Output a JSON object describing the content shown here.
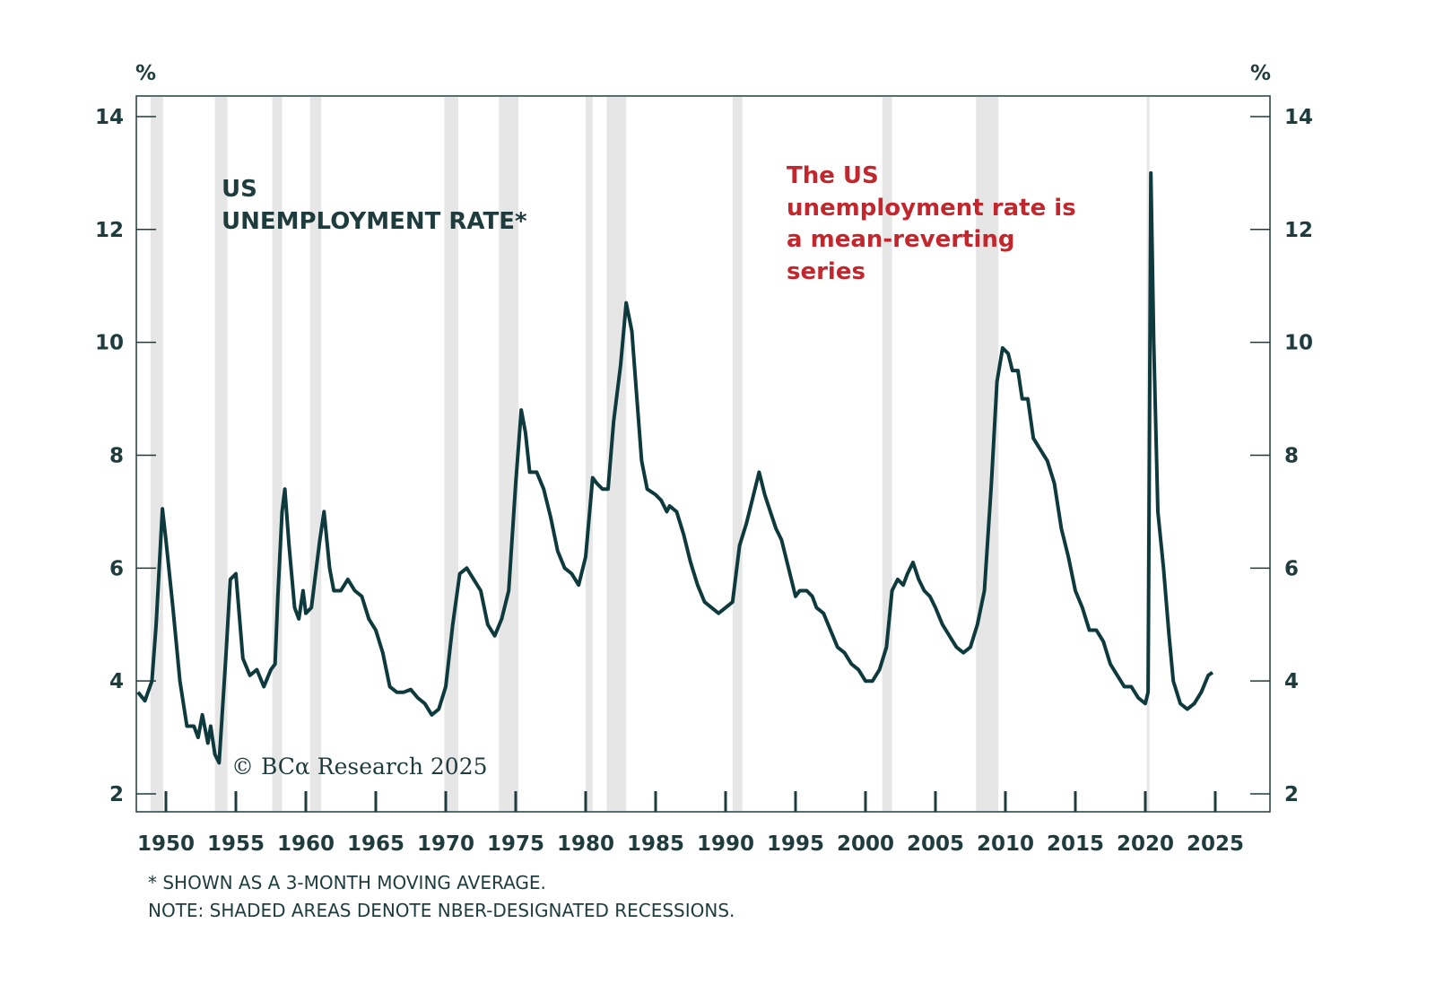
{
  "chart_data": {
    "type": "line",
    "title": "US UNEMPLOYMENT RATE*",
    "title_lines": [
      "US",
      "UNEMPLOYMENT RATE*"
    ],
    "annotation_lines": [
      "The US",
      "unemployment rate is",
      "a mean-reverting",
      "series"
    ],
    "ylabel_left": "%",
    "ylabel_right": "%",
    "ylim": [
      2,
      14
    ],
    "xlim": [
      1948,
      2029
    ],
    "yticks": [
      2,
      4,
      6,
      8,
      10,
      12,
      14
    ],
    "xticks": [
      1950,
      1955,
      1960,
      1965,
      1970,
      1975,
      1980,
      1985,
      1990,
      1995,
      2000,
      2005,
      2010,
      2015,
      2020,
      2025
    ],
    "grid": false,
    "colors": {
      "line": "#0e3a3d",
      "recession": "#e6e6e6",
      "annotation": "#c1272d",
      "text": "#1e3b3d",
      "axis": "#1e3b3d"
    },
    "recessions": [
      [
        1948.9,
        1949.8
      ],
      [
        1953.5,
        1954.4
      ],
      [
        1957.6,
        1958.3
      ],
      [
        1960.3,
        1961.1
      ],
      [
        1969.9,
        1970.9
      ],
      [
        1973.8,
        1975.2
      ],
      [
        1980.0,
        1980.5
      ],
      [
        1981.5,
        1982.9
      ],
      [
        1990.5,
        1991.2
      ],
      [
        2001.2,
        2001.9
      ],
      [
        2007.9,
        2009.5
      ],
      [
        2020.1,
        2020.3
      ]
    ],
    "series": [
      {
        "x": [
          1948.0,
          1948.5,
          1949.0,
          1949.3,
          1949.75,
          1950.0,
          1950.5,
          1951.0,
          1951.5,
          1952.0,
          1952.3,
          1952.6,
          1953.0,
          1953.2,
          1953.5,
          1953.8,
          1954.3,
          1954.6,
          1955.0,
          1955.5,
          1956.0,
          1956.5,
          1957.0,
          1957.5,
          1957.8,
          1958.0,
          1958.3,
          1958.5,
          1958.8,
          1959.2,
          1959.5,
          1959.8,
          1960.0,
          1960.4,
          1961.0,
          1961.3,
          1961.7,
          1962.0,
          1962.5,
          1963.0,
          1963.5,
          1964.0,
          1964.5,
          1965.0,
          1965.5,
          1966.0,
          1966.5,
          1967.0,
          1967.5,
          1968.0,
          1968.5,
          1969.0,
          1969.5,
          1970.0,
          1970.5,
          1971.0,
          1971.5,
          1972.0,
          1972.5,
          1973.0,
          1973.5,
          1974.0,
          1974.5,
          1975.0,
          1975.4,
          1975.7,
          1976.0,
          1976.5,
          1977.0,
          1977.5,
          1978.0,
          1978.5,
          1979.0,
          1979.5,
          1980.0,
          1980.5,
          1980.8,
          1981.2,
          1981.6,
          1982.0,
          1982.5,
          1982.9,
          1983.3,
          1983.6,
          1984.0,
          1984.4,
          1985.0,
          1985.4,
          1985.8,
          1986.0,
          1986.5,
          1987.0,
          1987.5,
          1988.0,
          1988.5,
          1989.0,
          1989.5,
          1990.0,
          1990.5,
          1991.0,
          1991.5,
          1992.0,
          1992.4,
          1992.8,
          1993.2,
          1993.6,
          1994.0,
          1994.5,
          1995.0,
          1995.3,
          1995.8,
          1996.2,
          1996.5,
          1997.0,
          1997.5,
          1998.0,
          1998.5,
          1999.0,
          1999.5,
          2000.0,
          2000.5,
          2001.0,
          2001.5,
          2001.9,
          2002.3,
          2002.7,
          2003.0,
          2003.4,
          2003.8,
          2004.2,
          2004.6,
          2005.0,
          2005.5,
          2006.0,
          2006.5,
          2007.0,
          2007.5,
          2008.0,
          2008.5,
          2009.0,
          2009.4,
          2009.8,
          2010.2,
          2010.5,
          2010.9,
          2011.2,
          2011.6,
          2012.0,
          2012.5,
          2013.0,
          2013.5,
          2014.0,
          2014.5,
          2015.0,
          2015.5,
          2016.0,
          2016.5,
          2017.0,
          2017.5,
          2018.0,
          2018.5,
          2019.0,
          2019.5,
          2020.0,
          2020.2,
          2020.4,
          2020.6,
          2020.9,
          2021.3,
          2021.7,
          2022.0,
          2022.5,
          2023.0,
          2023.5,
          2024.0,
          2024.5,
          2024.8
        ],
        "values": [
          3.8,
          3.65,
          4.0,
          5.0,
          7.05,
          6.5,
          5.3,
          4.0,
          3.2,
          3.2,
          3.0,
          3.4,
          2.9,
          3.2,
          2.7,
          2.55,
          4.5,
          5.8,
          5.9,
          4.4,
          4.1,
          4.2,
          3.9,
          4.2,
          4.3,
          5.5,
          7.0,
          7.4,
          6.4,
          5.3,
          5.1,
          5.6,
          5.2,
          5.3,
          6.5,
          7.0,
          6.0,
          5.6,
          5.6,
          5.8,
          5.6,
          5.5,
          5.1,
          4.9,
          4.5,
          3.9,
          3.8,
          3.8,
          3.85,
          3.7,
          3.6,
          3.4,
          3.5,
          3.9,
          5.0,
          5.9,
          6.0,
          5.8,
          5.6,
          5.0,
          4.8,
          5.1,
          5.6,
          7.5,
          8.8,
          8.4,
          7.7,
          7.7,
          7.4,
          6.9,
          6.3,
          6.0,
          5.9,
          5.7,
          6.2,
          7.6,
          7.5,
          7.4,
          7.4,
          8.6,
          9.6,
          10.7,
          10.2,
          9.2,
          7.9,
          7.4,
          7.3,
          7.2,
          7.0,
          7.1,
          7.0,
          6.6,
          6.1,
          5.7,
          5.4,
          5.3,
          5.2,
          5.3,
          5.4,
          6.4,
          6.8,
          7.3,
          7.7,
          7.3,
          7.0,
          6.7,
          6.5,
          6.0,
          5.5,
          5.6,
          5.6,
          5.5,
          5.3,
          5.2,
          4.9,
          4.6,
          4.5,
          4.3,
          4.2,
          4.0,
          4.0,
          4.2,
          4.6,
          5.6,
          5.8,
          5.7,
          5.9,
          6.1,
          5.8,
          5.6,
          5.5,
          5.3,
          5.0,
          4.8,
          4.6,
          4.5,
          4.6,
          5.0,
          5.6,
          7.5,
          9.3,
          9.9,
          9.8,
          9.5,
          9.5,
          9.0,
          9.0,
          8.3,
          8.1,
          7.9,
          7.5,
          6.7,
          6.2,
          5.6,
          5.3,
          4.9,
          4.9,
          4.7,
          4.3,
          4.1,
          3.9,
          3.9,
          3.7,
          3.6,
          3.8,
          13.0,
          10.0,
          7.0,
          6.0,
          4.8,
          4.0,
          3.6,
          3.5,
          3.6,
          3.8,
          4.1,
          4.15
        ]
      }
    ]
  },
  "watermark": "© BCα Research 2025",
  "footnotes": [
    "* SHOWN AS A 3-MONTH MOVING AVERAGE.",
    "NOTE: SHADED AREAS DENOTE NBER-DESIGNATED RECESSIONS."
  ]
}
